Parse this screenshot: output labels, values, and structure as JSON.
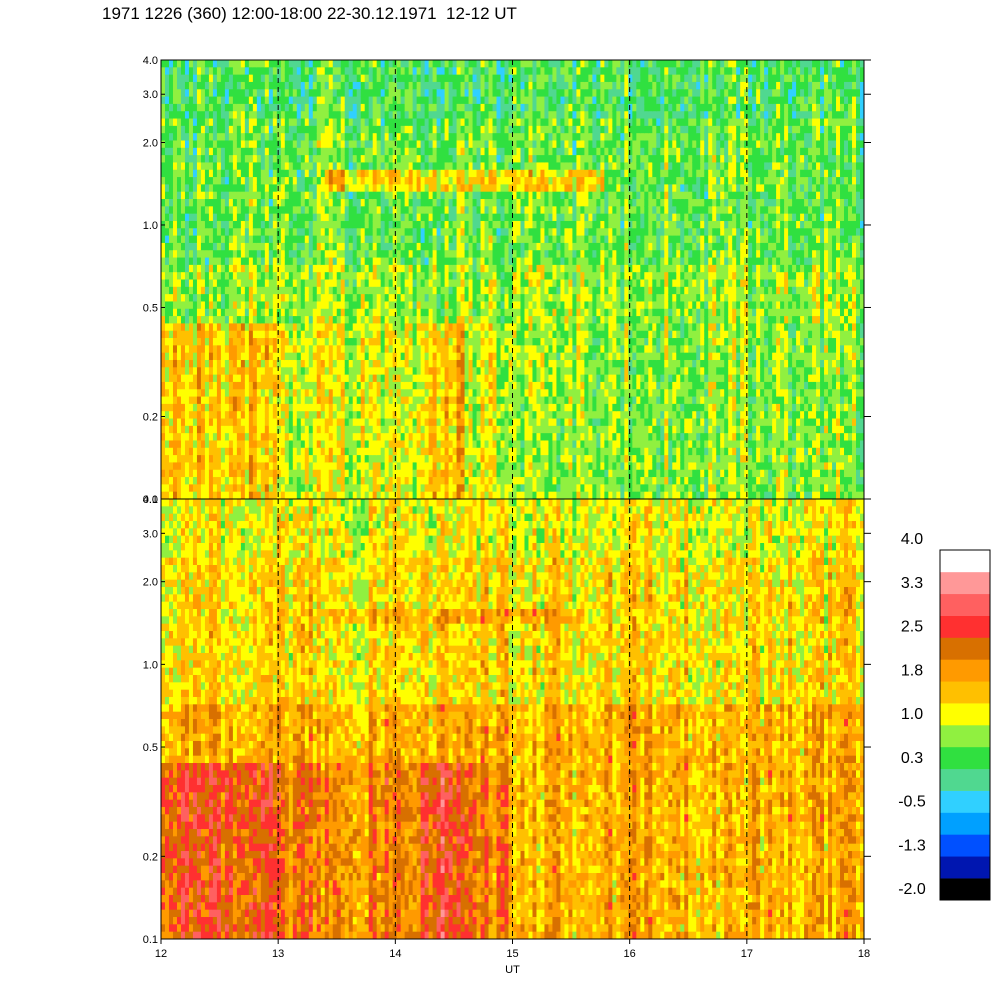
{
  "title": "1971 1226 (360) 12:00-18:00 22-30.12.1971  12-12 UT",
  "chart_data": {
    "type": "heatmap",
    "xlabel": "UT",
    "x_ticks": [
      12,
      13,
      14,
      15,
      16,
      17,
      18
    ],
    "xlim": [
      12,
      18
    ],
    "y_scale": "log",
    "panels": [
      {
        "name": "upper",
        "ylim": [
          0.1,
          4.0
        ],
        "y_ticks": [
          0.1,
          0.2,
          0.5,
          1.0,
          2.0,
          3.0,
          4.0
        ],
        "y_tick_labels": [
          "0.1",
          "0.2",
          "0.5",
          "1.0",
          "2.0",
          "3.0",
          "4.0"
        ],
        "background_level": 0.6,
        "low_freq_level": 1.1,
        "band": {
          "x_start": 13.4,
          "x_end": 15.8,
          "y": 1.45,
          "level": 1.4
        }
      },
      {
        "name": "lower",
        "ylim": [
          0.1,
          4.0
        ],
        "y_ticks": [
          0.1,
          0.2,
          0.5,
          1.0,
          2.0,
          3.0,
          4.0
        ],
        "y_tick_labels": [
          "0.1",
          "0.2",
          "0.5",
          "1.0",
          "2.0",
          "3.0",
          "4.0"
        ],
        "background_level": 1.4,
        "low_freq_level": 2.1,
        "band": {
          "x_start": 13.4,
          "x_end": 15.6,
          "y": 1.5,
          "level": 1.8
        }
      }
    ],
    "colorbar": {
      "labels": [
        "4.0",
        "3.3",
        "2.5",
        "1.8",
        "1.0",
        "0.3",
        "-0.5",
        "-1.3",
        "-2.0"
      ],
      "range": [
        -2.0,
        4.0
      ],
      "colors_bottom_to_top": [
        "#000000",
        "#0016b0",
        "#0050ff",
        "#00a0ff",
        "#30d0ff",
        "#50d890",
        "#30e040",
        "#90f040",
        "#ffff00",
        "#ffc000",
        "#ff9a00",
        "#d87000",
        "#ff3030",
        "#ff6060",
        "#ff9898",
        "#ffffff"
      ]
    },
    "grid": "dashed vertical lines at hours"
  }
}
